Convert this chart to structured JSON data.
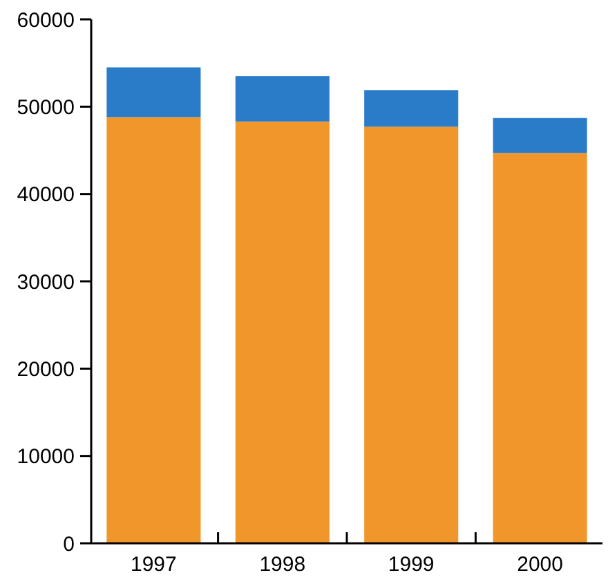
{
  "chart_data": {
    "type": "bar",
    "stacked": true,
    "categories": [
      "1997",
      "1998",
      "1999",
      "2000"
    ],
    "series": [
      {
        "color": "#f0962a",
        "values": [
          48800,
          48300,
          47700,
          44700
        ]
      },
      {
        "color": "#2a7cc8",
        "values": [
          5700,
          5200,
          4200,
          4000
        ]
      }
    ],
    "ylim": [
      0,
      60000
    ],
    "yticks": [
      0,
      10000,
      20000,
      30000,
      40000,
      50000,
      60000
    ],
    "grid": false
  }
}
